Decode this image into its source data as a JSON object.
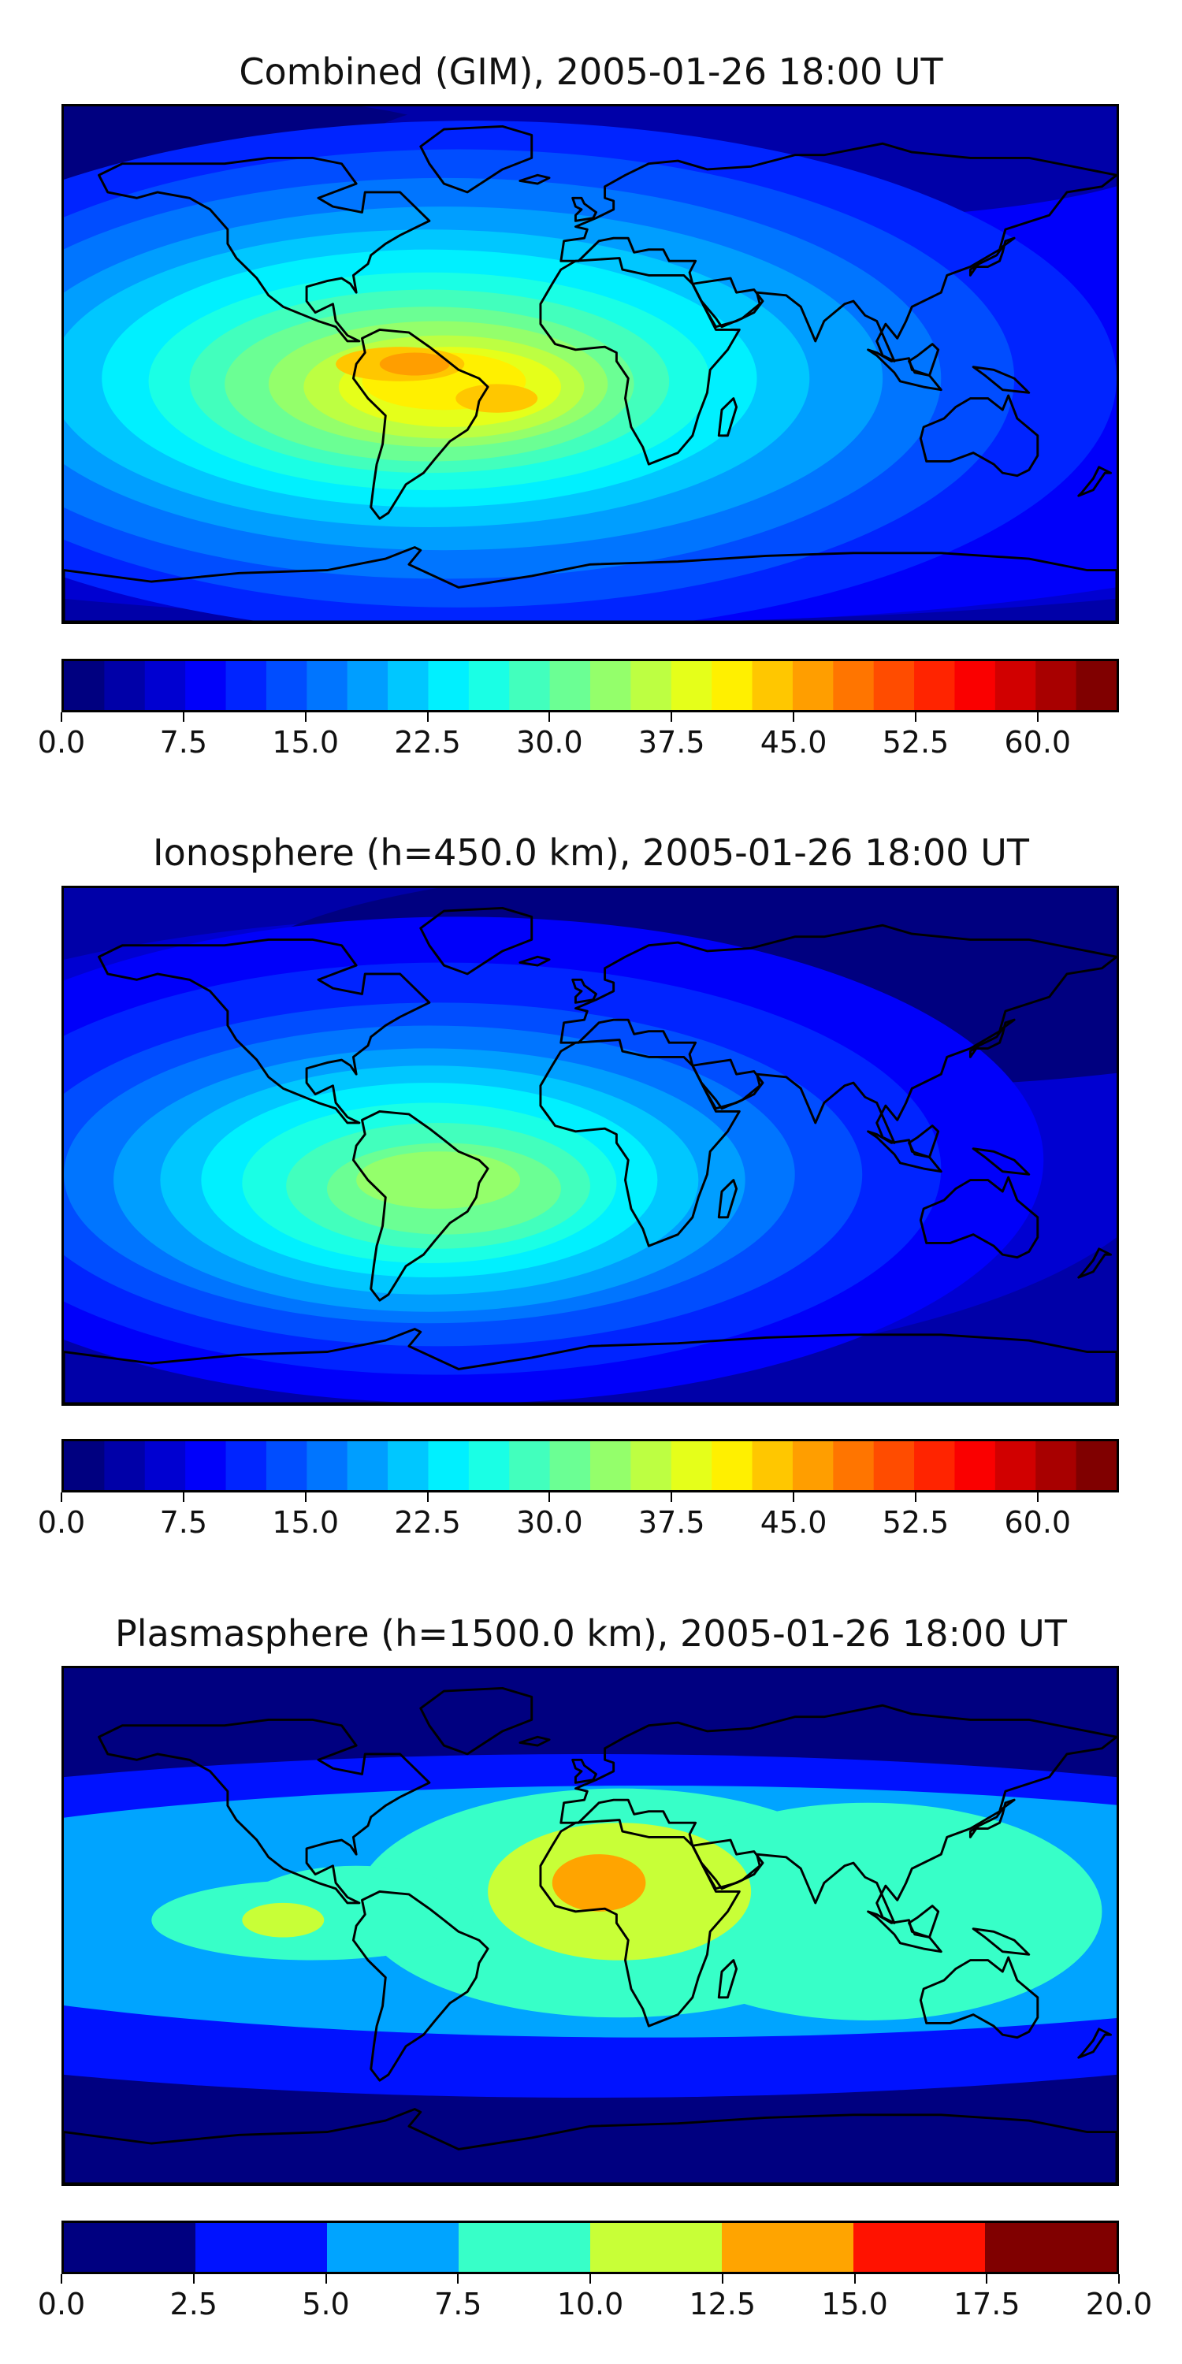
{
  "chart_data": [
    {
      "type": "heatmap",
      "title": "Combined (GIM), 2005-01-26 18:00 UT",
      "colorbar": {
        "levels": [
          0.0,
          2.5,
          5.0,
          7.5,
          10.0,
          12.5,
          15.0,
          17.5,
          20.0,
          22.5,
          25.0,
          27.5,
          30.0,
          32.5,
          35.0,
          37.5,
          40.0,
          42.5,
          45.0,
          47.5,
          50.0,
          52.5,
          55.0,
          57.5,
          60.0,
          62.5,
          65.0
        ],
        "tick_labels": [
          "0.0",
          "7.5",
          "15.0",
          "22.5",
          "30.0",
          "37.5",
          "45.0",
          "52.5",
          "60.0"
        ],
        "ticks": [
          0.0,
          7.5,
          15.0,
          22.5,
          30.0,
          37.5,
          45.0,
          52.5,
          60.0
        ],
        "range": [
          0,
          65
        ]
      },
      "features": [
        {
          "region": "South America / equatorial Atlantic",
          "lon": -50,
          "lat": -5,
          "peak_value": 48
        },
        {
          "region": "South Atlantic",
          "lon": -30,
          "lat": -15,
          "peak_value": 40
        },
        {
          "region": "Northern high latitudes",
          "lon": 60,
          "lat": 70,
          "peak_value": 3
        }
      ]
    },
    {
      "type": "heatmap",
      "title": "Ionosphere  (h=450.0 km), 2005-01-26 18:00 UT",
      "colorbar": {
        "levels": [
          0.0,
          2.5,
          5.0,
          7.5,
          10.0,
          12.5,
          15.0,
          17.5,
          20.0,
          22.5,
          25.0,
          27.5,
          30.0,
          32.5,
          35.0,
          37.5,
          40.0,
          42.5,
          45.0,
          47.5,
          50.0,
          52.5,
          55.0,
          57.5,
          60.0,
          62.5,
          65.0
        ],
        "tick_labels": [
          "0.0",
          "7.5",
          "15.0",
          "22.5",
          "30.0",
          "37.5",
          "45.0",
          "52.5",
          "60.0"
        ],
        "ticks": [
          0.0,
          7.5,
          15.0,
          22.5,
          30.0,
          37.5,
          45.0,
          52.5,
          60.0
        ],
        "range": [
          0,
          65
        ]
      },
      "features": [
        {
          "region": "South America",
          "lon": -50,
          "lat": -15,
          "peak_value": 38
        },
        {
          "region": "Asia",
          "lon": 90,
          "lat": 50,
          "peak_value": 3
        }
      ]
    },
    {
      "type": "heatmap",
      "title": "Plasmasphere (h=1500.0 km), 2005-01-26 18:00 UT",
      "colorbar": {
        "levels": [
          0.0,
          2.5,
          5.0,
          7.5,
          10.0,
          12.5,
          15.0,
          17.5,
          20.0
        ],
        "tick_labels": [
          "0.0",
          "2.5",
          "5.0",
          "7.5",
          "10.0",
          "12.5",
          "15.0",
          "17.5",
          "20.0"
        ],
        "ticks": [
          0.0,
          2.5,
          5.0,
          7.5,
          10.0,
          12.5,
          15.0,
          17.5,
          20.0
        ],
        "range": [
          0,
          20
        ]
      },
      "features": [
        {
          "region": "West Africa",
          "lon": 5,
          "lat": 12,
          "peak_value": 13
        },
        {
          "region": "Caribbean",
          "lon": -90,
          "lat": 5,
          "peak_value": 11
        },
        {
          "region": "Indian Ocean / South-East Asia",
          "lon": 90,
          "lat": 5,
          "peak_value": 9
        }
      ]
    }
  ]
}
